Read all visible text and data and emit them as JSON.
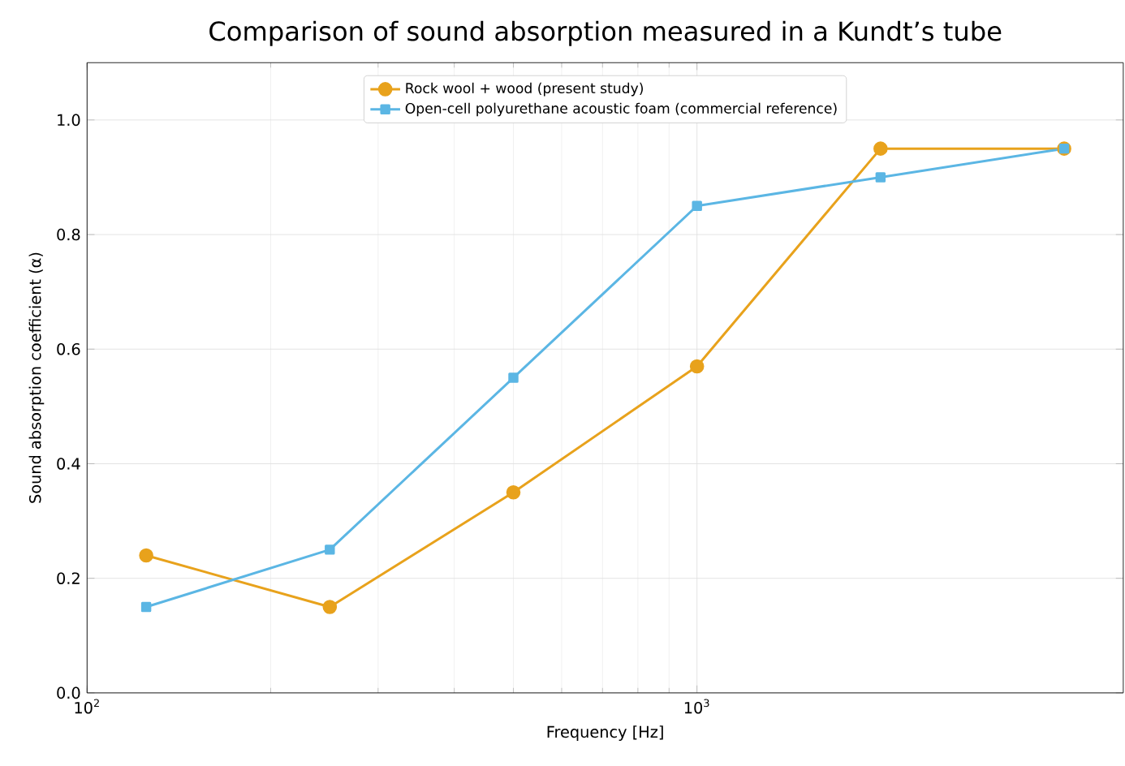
{
  "chart_data": {
    "type": "line",
    "title": "Comparison of sound absorption measured in a Kundt’s tube",
    "xlabel": "Frequency [Hz]",
    "ylabel": "Sound absorption coefficient (α)",
    "x": [
      125,
      250,
      500,
      1000,
      2000,
      4000
    ],
    "series": [
      {
        "name": "Rock wool + wood (present study)",
        "color": "#e8a21c",
        "marker": "circle",
        "values": [
          0.24,
          0.15,
          0.35,
          0.57,
          0.95,
          0.95
        ]
      },
      {
        "name": "Open-cell polyurethane acoustic foam (commercial reference)",
        "color": "#5bb6e4",
        "marker": "square",
        "values": [
          0.15,
          0.25,
          0.55,
          0.85,
          0.9,
          0.95
        ]
      }
    ],
    "log": "x",
    "xlim": [
      100,
      5000
    ],
    "xticks": [
      {
        "value": 100,
        "label": "10$^{2}$"
      },
      {
        "value": 1000,
        "label": "10$^{3}$"
      }
    ],
    "ylim": [
      0,
      1.1
    ],
    "yticks": [
      {
        "value": 0,
        "label": "0.0"
      },
      {
        "value": 0.2,
        "label": "0.2"
      },
      {
        "value": 0.4,
        "label": "0.4"
      },
      {
        "value": 0.6,
        "label": "0.6"
      },
      {
        "value": 0.8,
        "label": "0.8"
      },
      {
        "value": 1.0,
        "label": "1.0"
      }
    ],
    "grid": true,
    "legend": "top",
    "line_style": "solid"
  }
}
